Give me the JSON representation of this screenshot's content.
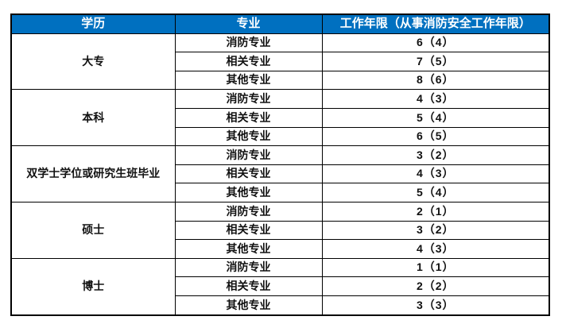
{
  "table": {
    "headers": {
      "education": "学历",
      "major": "专业",
      "work_years": "工作年限（从事消防安全工作年限）"
    },
    "groups": [
      {
        "education": "大专",
        "rows": [
          {
            "major": "消防专业",
            "years": "6（4）"
          },
          {
            "major": "相关专业",
            "years": "7（5）"
          },
          {
            "major": "其他专业",
            "years": "8（6）"
          }
        ]
      },
      {
        "education": "本科",
        "rows": [
          {
            "major": "消防专业",
            "years": "4（3）"
          },
          {
            "major": "相关专业",
            "years": "5（4）"
          },
          {
            "major": "其他专业",
            "years": "6（5）"
          }
        ]
      },
      {
        "education": "双学士学位或研究生班毕业",
        "rows": [
          {
            "major": "消防专业",
            "years": "3（2）"
          },
          {
            "major": "相关专业",
            "years": "4（3）"
          },
          {
            "major": "其他专业",
            "years": "5（4）"
          }
        ]
      },
      {
        "education": "硕士",
        "rows": [
          {
            "major": "消防专业",
            "years": "2（1）"
          },
          {
            "major": "相关专业",
            "years": "3（2）"
          },
          {
            "major": "其他专业",
            "years": "4（3）"
          }
        ]
      },
      {
        "education": "博士",
        "rows": [
          {
            "major": "消防专业",
            "years": "1（1）"
          },
          {
            "major": "相关专业",
            "years": "2（2）"
          },
          {
            "major": "其他专业",
            "years": "3（3）"
          }
        ]
      }
    ],
    "colors": {
      "header_background": "#0070C0",
      "header_text": "#FFFFFF",
      "body_text": "#111111",
      "border": "#000000",
      "page_background": "#FFFFFF"
    }
  }
}
